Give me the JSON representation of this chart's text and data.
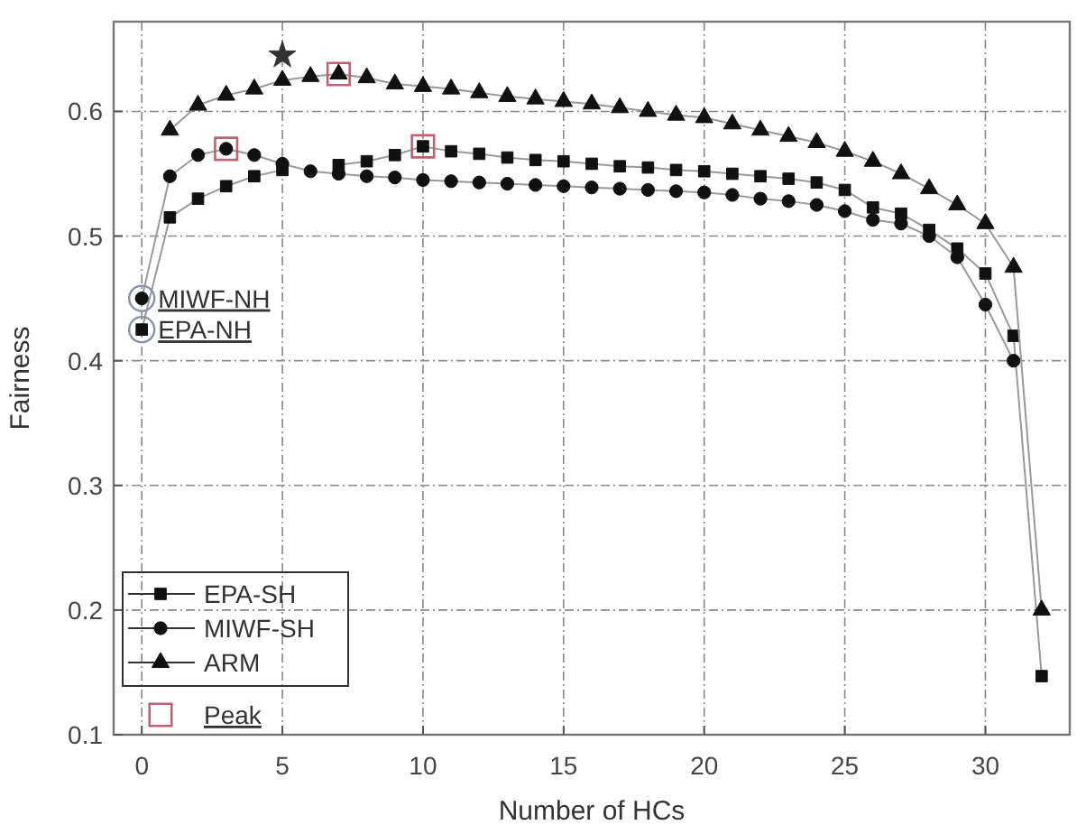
{
  "chart_data": {
    "type": "line",
    "xlabel": "Number of HCs",
    "ylabel": "Fairness",
    "x": [
      0,
      1,
      2,
      3,
      4,
      5,
      6,
      7,
      8,
      9,
      10,
      11,
      12,
      13,
      14,
      15,
      16,
      17,
      18,
      19,
      20,
      21,
      22,
      23,
      24,
      25,
      26,
      27,
      28,
      29,
      30,
      31,
      32
    ],
    "xlim": [
      -1,
      33
    ],
    "xticks": [
      0,
      5,
      10,
      15,
      20,
      25,
      30
    ],
    "ylim": [
      0.1,
      0.672
    ],
    "yticks": [
      0.1,
      0.2,
      0.3,
      0.4,
      0.5,
      0.6
    ],
    "grid": true,
    "legend": "bottom left",
    "line_style": "solid",
    "series": [
      {
        "name": "EPA-SH",
        "color": "#111111",
        "marker": "square",
        "values": [
          0.425,
          0.515,
          0.53,
          0.54,
          0.548,
          0.553,
          null,
          0.557,
          0.56,
          0.565,
          0.572,
          0.568,
          0.566,
          0.563,
          0.561,
          0.56,
          0.558,
          0.556,
          0.555,
          0.553,
          0.552,
          0.55,
          0.548,
          0.546,
          0.543,
          0.537,
          0.523,
          0.518,
          0.505,
          0.49,
          0.47,
          0.42,
          0.147
        ]
      },
      {
        "name": "MIWF-SH",
        "color": "#111111",
        "marker": "circle",
        "values": [
          0.45,
          0.548,
          0.565,
          0.57,
          0.565,
          0.558,
          0.552,
          0.55,
          0.548,
          0.547,
          0.545,
          0.544,
          0.543,
          0.542,
          0.541,
          0.54,
          0.539,
          0.538,
          0.537,
          0.536,
          0.535,
          0.533,
          0.53,
          0.528,
          0.525,
          0.52,
          0.513,
          0.51,
          0.5,
          0.483,
          0.445,
          0.4,
          null
        ]
      },
      {
        "name": "ARM",
        "color": "#111111",
        "marker": "triangle",
        "values": [
          null,
          0.585,
          0.605,
          0.613,
          0.618,
          0.625,
          0.628,
          0.63,
          0.627,
          0.622,
          0.62,
          0.618,
          0.615,
          0.612,
          0.61,
          0.608,
          0.606,
          0.603,
          0.6,
          0.597,
          0.595,
          0.59,
          0.585,
          0.58,
          0.575,
          0.568,
          0.56,
          0.55,
          0.538,
          0.525,
          0.51,
          0.475,
          0.2
        ]
      },
      {
        "name": "Peak",
        "type": "scatter",
        "color": "#c06070",
        "marker": "square",
        "x": [
          3,
          7,
          10
        ],
        "values": [
          0.57,
          0.63,
          0.572
        ]
      },
      {
        "type": "scatter",
        "color": "#333333",
        "marker": "star",
        "x": [
          5
        ],
        "values": [
          0.645
        ]
      }
    ],
    "annotations": [
      {
        "text": "MIWF-NH",
        "x": 0,
        "y": 0.45
      },
      {
        "text": "EPA-NH",
        "x": 0,
        "y": 0.425
      }
    ]
  }
}
